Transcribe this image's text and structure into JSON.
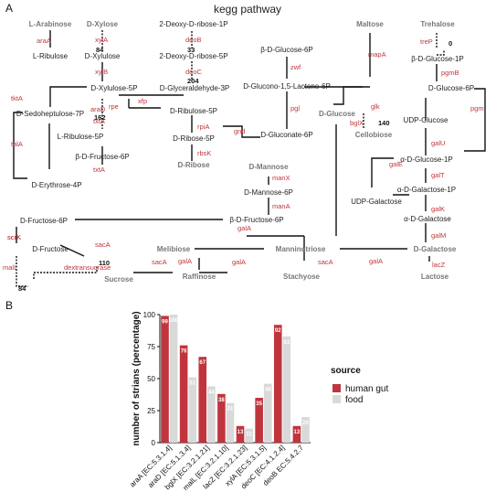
{
  "panel_a": {
    "label": "A",
    "title": "kegg pathway",
    "nodes": [
      {
        "id": "l_arabinose",
        "text": "L-Arabinose",
        "gray": true
      },
      {
        "id": "l_ribulose",
        "text": "L-Ribulose",
        "gray": false
      },
      {
        "id": "d_xylose",
        "text": "D-Xylose",
        "gray": true
      },
      {
        "id": "d_xylulose",
        "text": "D-Xylulose",
        "gray": false
      },
      {
        "id": "d_xylulose_5p",
        "text": "D-Xylulose-5P",
        "gray": false
      },
      {
        "id": "deoxy_ribose_1p",
        "text": "2-Deoxy-D-ribose-1P",
        "gray": false
      },
      {
        "id": "deoxy_ribose_5p",
        "text": "2-Deoxy-D-ribose-5P",
        "gray": false
      },
      {
        "id": "glyceraldehyde_3p",
        "text": "D-Glyceraldehyde-3P",
        "gray": false
      },
      {
        "id": "d_sedoheptulose_7p",
        "text": "D-Sedoheptulose-7P",
        "gray": false
      },
      {
        "id": "l_ribulose_5p",
        "text": "L-Ribulose-5P",
        "gray": false
      },
      {
        "id": "d_ribulose_5p",
        "text": "D-Ribulose-5P",
        "gray": false
      },
      {
        "id": "d_ribose_5p",
        "text": "D-Ribose-5P",
        "gray": false
      },
      {
        "id": "d_ribose",
        "text": "D-Ribose",
        "gray": true
      },
      {
        "id": "b_d_fructose_6p_left",
        "text": "β-D-Fructose-6P",
        "gray": false
      },
      {
        "id": "d_erythrose_4p",
        "text": "D-Erythrose-4P",
        "gray": false
      },
      {
        "id": "b_d_glucose_6p",
        "text": "β-D-Glucose-6P",
        "gray": false
      },
      {
        "id": "d_glucono_lactone",
        "text": "D-Glucono-1,5-Lactone-6P",
        "gray": false
      },
      {
        "id": "d_gluconate_6p",
        "text": "D-Gluconate-6P",
        "gray": false
      },
      {
        "id": "d_mannose",
        "text": "D-Mannose",
        "gray": true
      },
      {
        "id": "d_mannose_6p",
        "text": "D-Mannose-6P",
        "gray": false
      },
      {
        "id": "b_d_fructose_6p_mid",
        "text": "β-D-Fructose-6P",
        "gray": false
      },
      {
        "id": "maltose",
        "text": "Maltose",
        "gray": true
      },
      {
        "id": "trehalose",
        "text": "Trehalose",
        "gray": true
      },
      {
        "id": "b_d_glucose_1p",
        "text": "β-D-Glucose-1P",
        "gray": false
      },
      {
        "id": "d_glucose_6p",
        "text": "D-Glucose-6P",
        "gray": false
      },
      {
        "id": "d_glucose",
        "text": "D-Glucose",
        "gray": true
      },
      {
        "id": "cellobiose",
        "text": "Cellobiose",
        "gray": true
      },
      {
        "id": "udp_glucose",
        "text": "UDP-Glucose",
        "gray": false
      },
      {
        "id": "a_d_glucose_1p",
        "text": "α-D-Glucose-1P",
        "gray": false
      },
      {
        "id": "a_d_galactose_1p",
        "text": "α-D-Galactose-1P",
        "gray": false
      },
      {
        "id": "udp_galactose",
        "text": "UDP-Galactose",
        "gray": false
      },
      {
        "id": "a_d_galactose",
        "text": "α-D-Galactose",
        "gray": false
      },
      {
        "id": "d_galactose",
        "text": "D-Galactose",
        "gray": true
      },
      {
        "id": "lactose",
        "text": "Lactose",
        "gray": true
      },
      {
        "id": "d_fructose_6p",
        "text": "D-Fructose-6P",
        "gray": false
      },
      {
        "id": "d_fructose",
        "text": "D-Fructose",
        "gray": false
      },
      {
        "id": "sucrose",
        "text": "Sucrose",
        "gray": true
      },
      {
        "id": "melibiose",
        "text": "Melibiose",
        "gray": true
      },
      {
        "id": "manninotriose",
        "text": "Manninotriose",
        "gray": true
      },
      {
        "id": "raffinose",
        "text": "Raffinose",
        "gray": true
      },
      {
        "id": "stachyose",
        "text": "Stachyose",
        "gray": true
      }
    ],
    "enzymes": [
      "araA",
      "xylA",
      "xylB",
      "deoB",
      "deoC",
      "tktA",
      "araD",
      "rpe",
      "xfp",
      "talA",
      "txtA",
      "txtA",
      "rpiA",
      "rbsK",
      "zwf",
      "pgl",
      "gnd",
      "manX",
      "manA",
      "scrK",
      "mapA",
      "treP",
      "pgmB",
      "glk",
      "bglX",
      "pgm",
      "galU",
      "galE",
      "galT",
      "galK",
      "galM",
      "lacZ",
      "galA",
      "galA",
      "galA",
      "galA",
      "sacA",
      "sacA",
      "sacA",
      "malL",
      "dextransucrase",
      "scrK"
    ],
    "counts": [
      "84",
      "33",
      "204",
      "162",
      "0",
      "140",
      "110",
      "84"
    ]
  },
  "panel_b": {
    "label": "B",
    "chart_data": {
      "type": "bar",
      "categories": [
        "araA [EC:5.3.1.4]",
        "araD [EC:5.1.3.4]",
        "bglX [EC:3.2.1.21]",
        "malL [EC:3.2.1.10]",
        "lacZ [EC:3.2.1.23]",
        "xylA [EC:5.3.1.5]",
        "deoC [EC:4.1.2.4]",
        "deoB EC:5.4.2.7"
      ],
      "series": [
        {
          "name": "human gut",
          "color": "#c0353d",
          "values": [
            99,
            76,
            67,
            38,
            13,
            35,
            92,
            13
          ],
          "labels": [
            "99",
            "76",
            "67",
            "38",
            "13",
            "35",
            "92",
            "13"
          ]
        },
        {
          "name": "food",
          "color": "#d9d9d9",
          "values": [
            100,
            51,
            44,
            31,
            11,
            46,
            83,
            20
          ],
          "labels": [
            "100",
            "51",
            "44",
            "31",
            "11",
            "46",
            "83",
            "20"
          ]
        }
      ],
      "ylabel": "number of strians (percentage)",
      "yticks": [
        "0",
        "25",
        "50",
        "75",
        "100"
      ],
      "ylim": [
        0,
        100
      ],
      "legend_title": "source",
      "legend_position": "right"
    }
  }
}
